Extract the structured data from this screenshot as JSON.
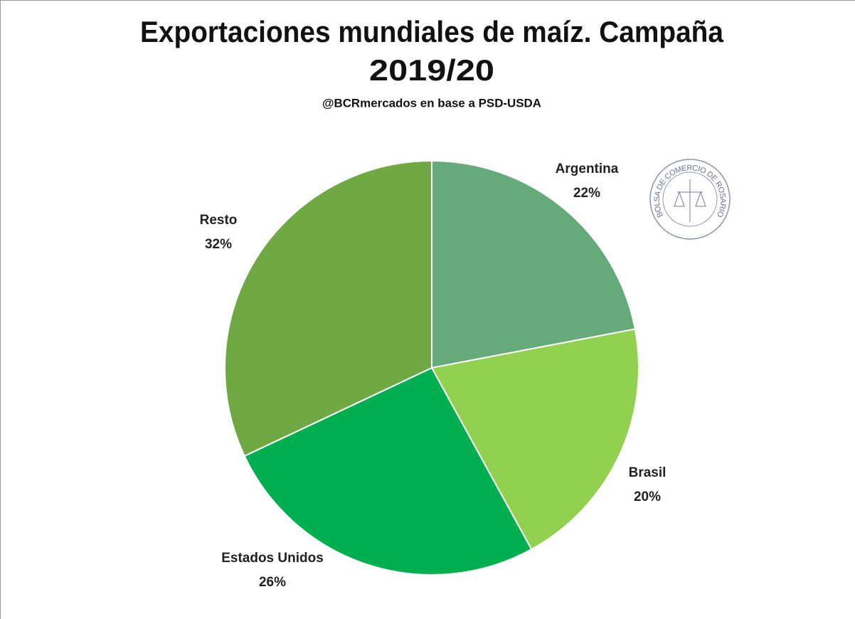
{
  "chart_data": {
    "type": "pie",
    "title": "Exportaciones mundiales de maíz. Campaña 2019/20",
    "subtitle": "@BCRmercados en base a PSD-USDA",
    "logo": "BOLSA DE COMERCIO DE ROSARIO",
    "categories": [
      "Argentina",
      "Brasil",
      "Estados Unidos",
      "Resto"
    ],
    "values": [
      22,
      20,
      26,
      32
    ],
    "value_labels": [
      "22%",
      "20%",
      "26%",
      "32%"
    ],
    "colors": [
      "#66a97a",
      "#92d050",
      "#00b050",
      "#70a844"
    ]
  }
}
